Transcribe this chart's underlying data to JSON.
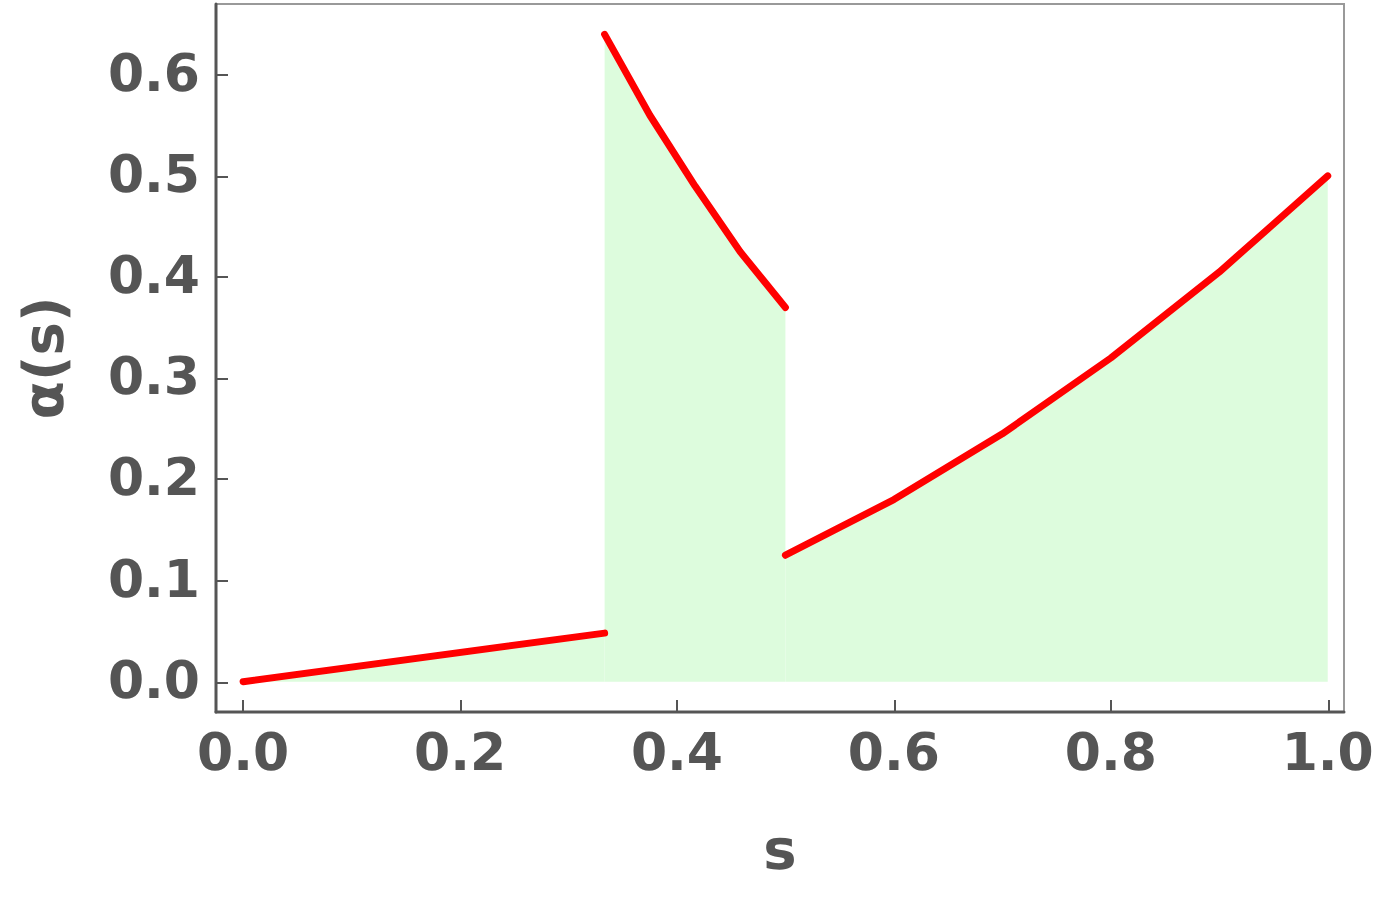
{
  "chart_data": {
    "type": "area",
    "xlabel": "s",
    "ylabel": "α(s)",
    "xlim": [
      -0.025,
      1.015
    ],
    "ylim": [
      -0.03,
      0.67
    ],
    "xticks": [
      {
        "value": 0,
        "label": "0.0"
      },
      {
        "value": 0.2,
        "label": "0.2"
      },
      {
        "value": 0.4,
        "label": "0.4"
      },
      {
        "value": 0.6,
        "label": "0.6"
      },
      {
        "value": 0.8,
        "label": "0.8"
      },
      {
        "value": 1,
        "label": "1.0"
      }
    ],
    "yticks": [
      {
        "value": 0,
        "label": "0.0"
      },
      {
        "value": 0.1,
        "label": "0.1"
      },
      {
        "value": 0.2,
        "label": "0.2"
      },
      {
        "value": 0.3,
        "label": "0.3"
      },
      {
        "value": 0.4,
        "label": "0.4"
      },
      {
        "value": 0.5,
        "label": "0.5"
      },
      {
        "value": 0.6,
        "label": "0.6"
      }
    ],
    "grid": false,
    "marker": "none",
    "line_style": "solid",
    "series": [
      {
        "color": "#ff0000",
        "x": [
          0,
          0.3333
        ],
        "values": [
          0,
          0.048
        ]
      },
      {
        "color": "#ff0000",
        "x": [
          0.3333,
          0.375,
          0.4167,
          0.4583,
          0.5
        ],
        "values": [
          0.64,
          0.56,
          0.49,
          0.425,
          0.37
        ]
      },
      {
        "color": "#ff0000",
        "x": [
          0.5,
          0.6,
          0.7,
          0.8,
          0.9,
          1
        ],
        "values": [
          0.125,
          0.18,
          0.245,
          0.32,
          0.405,
          0.5
        ]
      }
    ]
  }
}
